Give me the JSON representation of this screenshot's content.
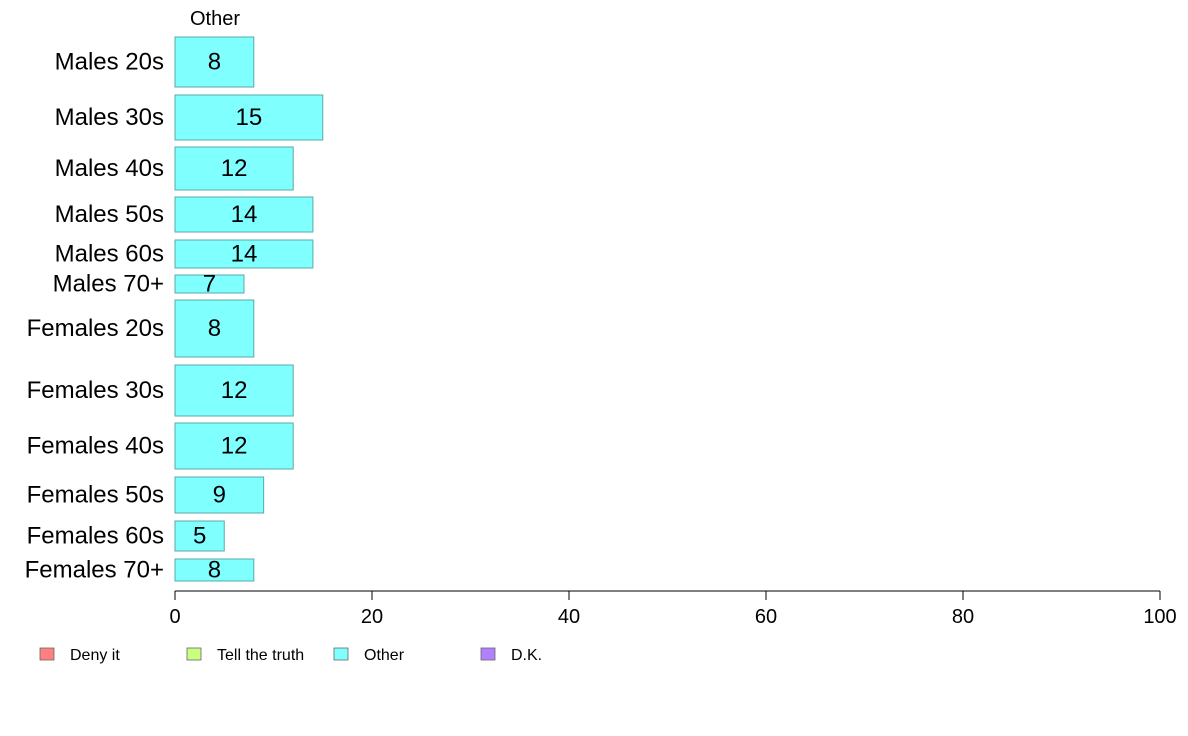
{
  "chart_data": {
    "type": "bar",
    "orientation": "horizontal",
    "panel_title": "Other",
    "categories": [
      "Males 20s",
      "Males 30s",
      "Males 40s",
      "Males 50s",
      "Males 60s",
      "Males 70+",
      "Females 20s",
      "Females 30s",
      "Females 40s",
      "Females 50s",
      "Females 60s",
      "Females 70+"
    ],
    "values": [
      8,
      15,
      12,
      14,
      14,
      7,
      8,
      12,
      12,
      9,
      5,
      8
    ],
    "value_labels": [
      "8",
      "15",
      "12",
      "14",
      "14",
      "7",
      "8",
      "12",
      "12",
      "9",
      "5",
      "8"
    ],
    "xlim": [
      0,
      100
    ],
    "xticks": [
      0,
      20,
      40,
      60,
      80,
      100
    ],
    "xtick_labels": [
      "0",
      "20",
      "40",
      "60",
      "80",
      "100"
    ],
    "bar_color": "#80FFFF",
    "bar_edge": "#5aa8a8",
    "legend": [
      {
        "label": "Deny it",
        "color": "#FF8080"
      },
      {
        "label": "Tell the truth",
        "color": "#C8FF80"
      },
      {
        "label": "Other",
        "color": "#80FFFF"
      },
      {
        "label": "D.K.",
        "color": "#B080FF"
      }
    ],
    "legend_position": "bottom-left",
    "grid": false
  }
}
